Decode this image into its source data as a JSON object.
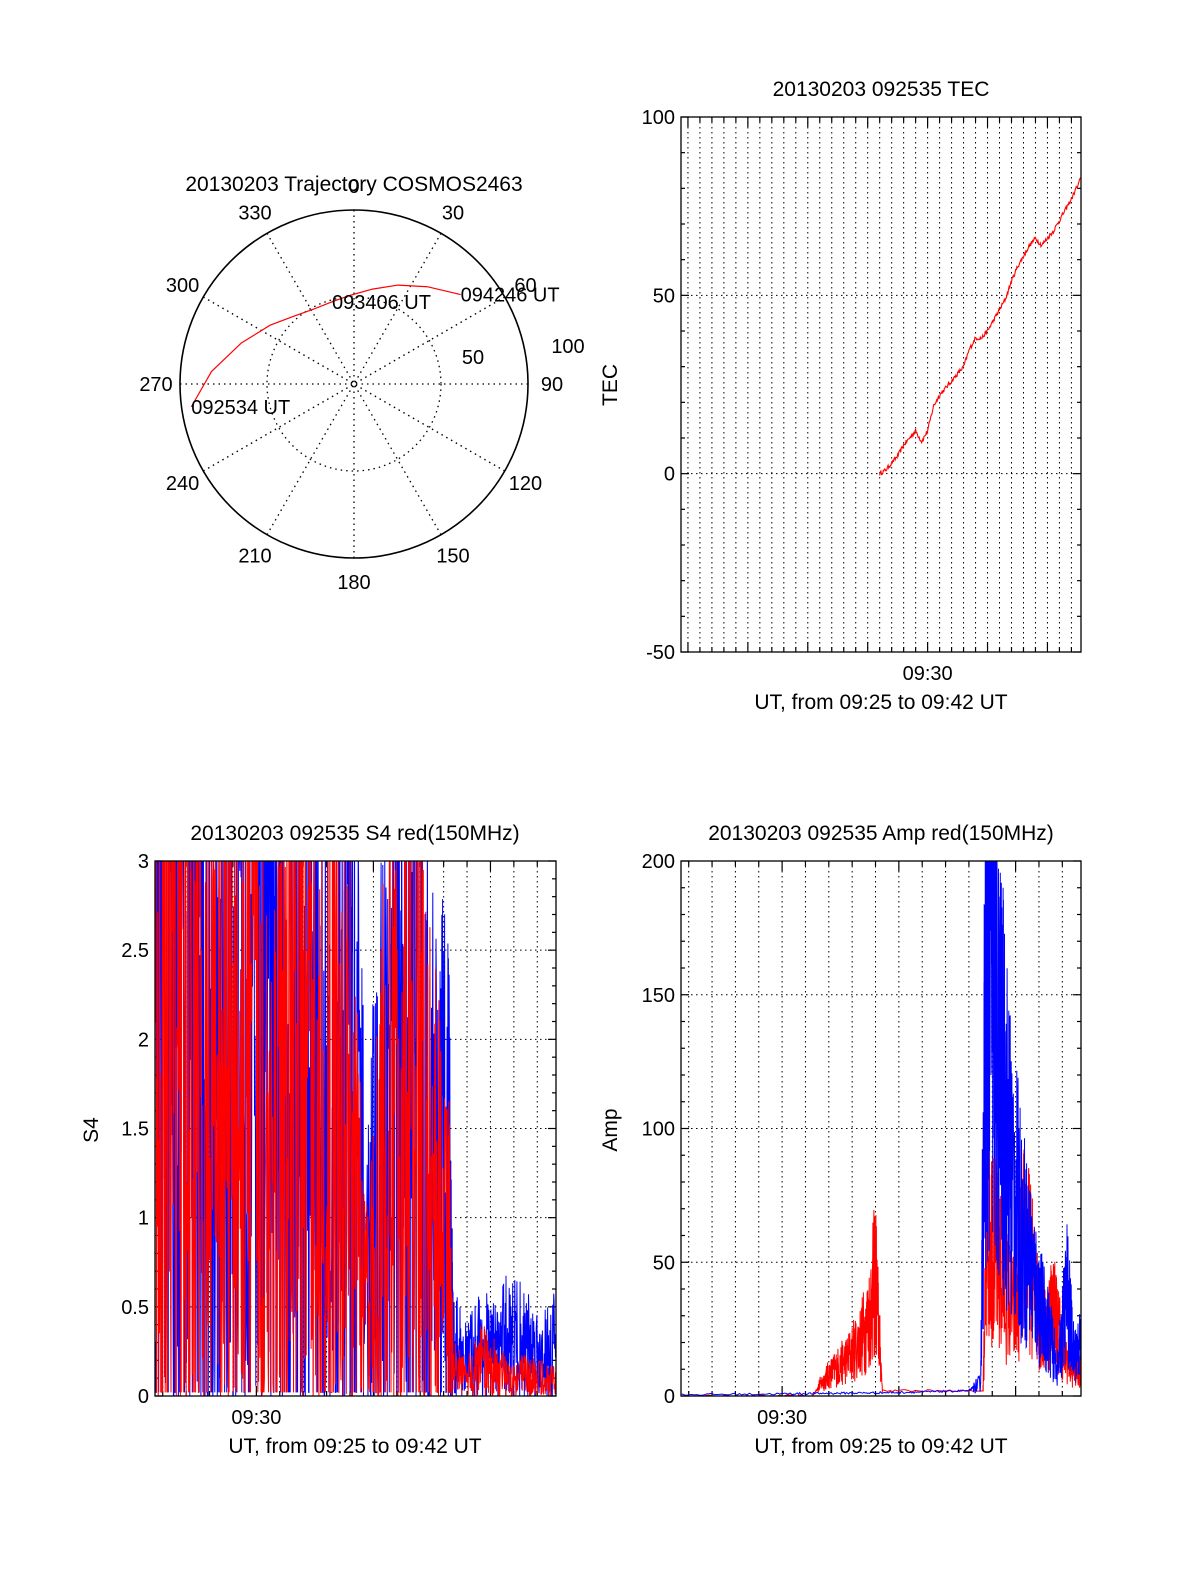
{
  "chart_data": [
    {
      "type": "polar",
      "title": "20130203 Trajectory COSMOS2463",
      "azimuth_labels": [
        "0",
        "30",
        "60",
        "90",
        "120",
        "150",
        "180",
        "210",
        "240",
        "270",
        "300",
        "330"
      ],
      "elevation_labels": [
        "100",
        "50"
      ],
      "elevation_range": [
        0,
        90
      ],
      "grid": true,
      "trajectory": {
        "color": "#ff0000",
        "points": [
          {
            "az": 262,
            "el": 5
          },
          {
            "az": 275,
            "el": 16
          },
          {
            "az": 290,
            "el": 28
          },
          {
            "az": 305,
            "el": 37
          },
          {
            "az": 318,
            "el": 43
          },
          {
            "az": 332,
            "el": 46
          },
          {
            "az": 345,
            "el": 46
          },
          {
            "az": 358,
            "el": 44
          },
          {
            "az": 11,
            "el": 40
          },
          {
            "az": 24,
            "el": 34
          },
          {
            "az": 37,
            "el": 27
          },
          {
            "az": 50,
            "el": 18
          }
        ]
      },
      "annotations": [
        {
          "text": "092534 UT",
          "az": 262,
          "el": 5
        },
        {
          "text": "093406 UT",
          "az": 345,
          "el": 46
        },
        {
          "text": "094246 UT",
          "az": 50,
          "el": 18
        }
      ]
    },
    {
      "type": "line",
      "title": "20130203 092535 TEC",
      "ylabel": "TEC",
      "xlabel": "UT, from 09:25 to 09:42 UT",
      "ylim": [
        -50,
        100
      ],
      "yticks": [
        "100",
        "50",
        "0",
        "-50"
      ],
      "xlim_minutes": [
        9.42,
        42.8
      ],
      "xticks": [
        {
          "label": "09:30",
          "minute": 30
        }
      ],
      "grid": true,
      "series": [
        {
          "color": "#ff0000",
          "x": [
            26.0,
            26.5,
            27.0,
            27.5,
            28.0,
            28.5,
            29.0,
            29.5,
            30.0,
            30.5,
            31.0,
            31.5,
            32.0,
            32.5,
            33.0,
            33.5,
            34.0,
            34.5,
            35.0,
            35.5,
            36.0,
            36.5,
            37.0,
            37.5,
            38.0,
            38.5,
            39.0,
            39.5,
            40.0,
            40.5,
            41.0,
            41.5,
            42.0,
            42.8
          ],
          "y": [
            0,
            1,
            3,
            5,
            8,
            10,
            12,
            9,
            12,
            19,
            22,
            24,
            26,
            28,
            30,
            35,
            38,
            38,
            40,
            43,
            46,
            49,
            54,
            58,
            61,
            64,
            66,
            64,
            66,
            68,
            71,
            74,
            77,
            83
          ]
        }
      ]
    },
    {
      "type": "line",
      "title": "20130203 092535 S4 red(150MHz)",
      "ylabel": "S4",
      "xlabel": "UT, from 09:25 to 09:42 UT",
      "ylim": [
        0,
        3
      ],
      "yticks": [
        "3",
        "2.5",
        "2",
        "1.5",
        "1",
        "0.5",
        "0"
      ],
      "xlim_minutes": [
        25.67,
        42.8
      ],
      "xticks": [
        {
          "label": "09:30",
          "minute": 30
        }
      ],
      "grid": true,
      "series": [
        {
          "color": "#0000ff",
          "x": [
            25.7,
            26.3,
            27.0,
            27.7,
            28.4,
            29.1,
            29.8,
            30.5,
            31.2,
            31.9,
            32.6,
            33.3,
            34.0,
            34.7,
            35.4,
            36.1,
            36.8,
            37.5,
            38.2,
            38.4,
            39.0,
            39.6,
            40.2,
            40.8,
            41.4,
            42.0,
            42.8
          ],
          "y": [
            2.7,
            2.9,
            2.2,
            2.5,
            1.8,
            2.0,
            2.6,
            2.2,
            1.9,
            2.4,
            2.0,
            1.8,
            2.5,
            0.7,
            1.6,
            2.0,
            2.2,
            1.5,
            1.3,
            0.3,
            0.2,
            0.3,
            0.25,
            0.35,
            0.3,
            0.25,
            0.3
          ]
        },
        {
          "color": "#ff0000",
          "x": [
            25.7,
            26.3,
            27.0,
            27.7,
            28.4,
            29.1,
            29.8,
            30.5,
            31.2,
            31.9,
            32.6,
            33.3,
            34.0,
            34.7,
            35.4,
            36.1,
            36.8,
            37.5,
            38.2,
            38.4,
            39.0,
            39.6,
            40.2,
            40.8,
            41.4,
            42.0,
            42.8
          ],
          "y": [
            2.5,
            2.7,
            2.0,
            1.6,
            2.1,
            1.7,
            2.3,
            1.5,
            1.8,
            2.2,
            1.6,
            1.9,
            1.5,
            0.5,
            1.4,
            1.7,
            1.8,
            1.3,
            0.9,
            0.15,
            0.1,
            0.2,
            0.15,
            0.1,
            0.12,
            0.1,
            0.08
          ]
        }
      ]
    },
    {
      "type": "line",
      "title": "20130203 092535 Amp red(150MHz)",
      "ylabel": "Amp",
      "xlabel": "UT, from 09:25 to 09:42 UT",
      "ylim": [
        0,
        200
      ],
      "yticks": [
        "200",
        "150",
        "100",
        "50",
        "0"
      ],
      "xlim_minutes": [
        25.67,
        42.8
      ],
      "xticks": [
        {
          "label": "09:30",
          "minute": 30
        }
      ],
      "grid": true,
      "series": [
        {
          "color": "#ff0000",
          "x": [
            25.7,
            31.3,
            31.6,
            32.0,
            32.4,
            32.8,
            33.3,
            33.7,
            34.0,
            34.3,
            38.6,
            38.8,
            39.1,
            39.5,
            40.0,
            40.4,
            40.8,
            41.2,
            41.6,
            42.0,
            42.4,
            42.8
          ],
          "y": [
            0,
            0,
            4,
            8,
            11,
            14,
            20,
            28,
            45,
            2,
            2,
            68,
            55,
            40,
            30,
            60,
            40,
            22,
            35,
            18,
            10,
            10
          ]
        },
        {
          "color": "#0000ff",
          "x": [
            25.7,
            30.0,
            32.0,
            34.0,
            36.0,
            38.0,
            38.5,
            38.7,
            38.9,
            39.2,
            39.5,
            39.8,
            40.2,
            40.6,
            41.0,
            41.4,
            41.8,
            42.2,
            42.5,
            42.8
          ],
          "y": [
            0.5,
            0.8,
            1,
            1.2,
            1.5,
            2,
            5,
            140,
            165,
            130,
            110,
            85,
            65,
            50,
            35,
            25,
            10,
            40,
            15,
            20
          ]
        }
      ]
    }
  ]
}
